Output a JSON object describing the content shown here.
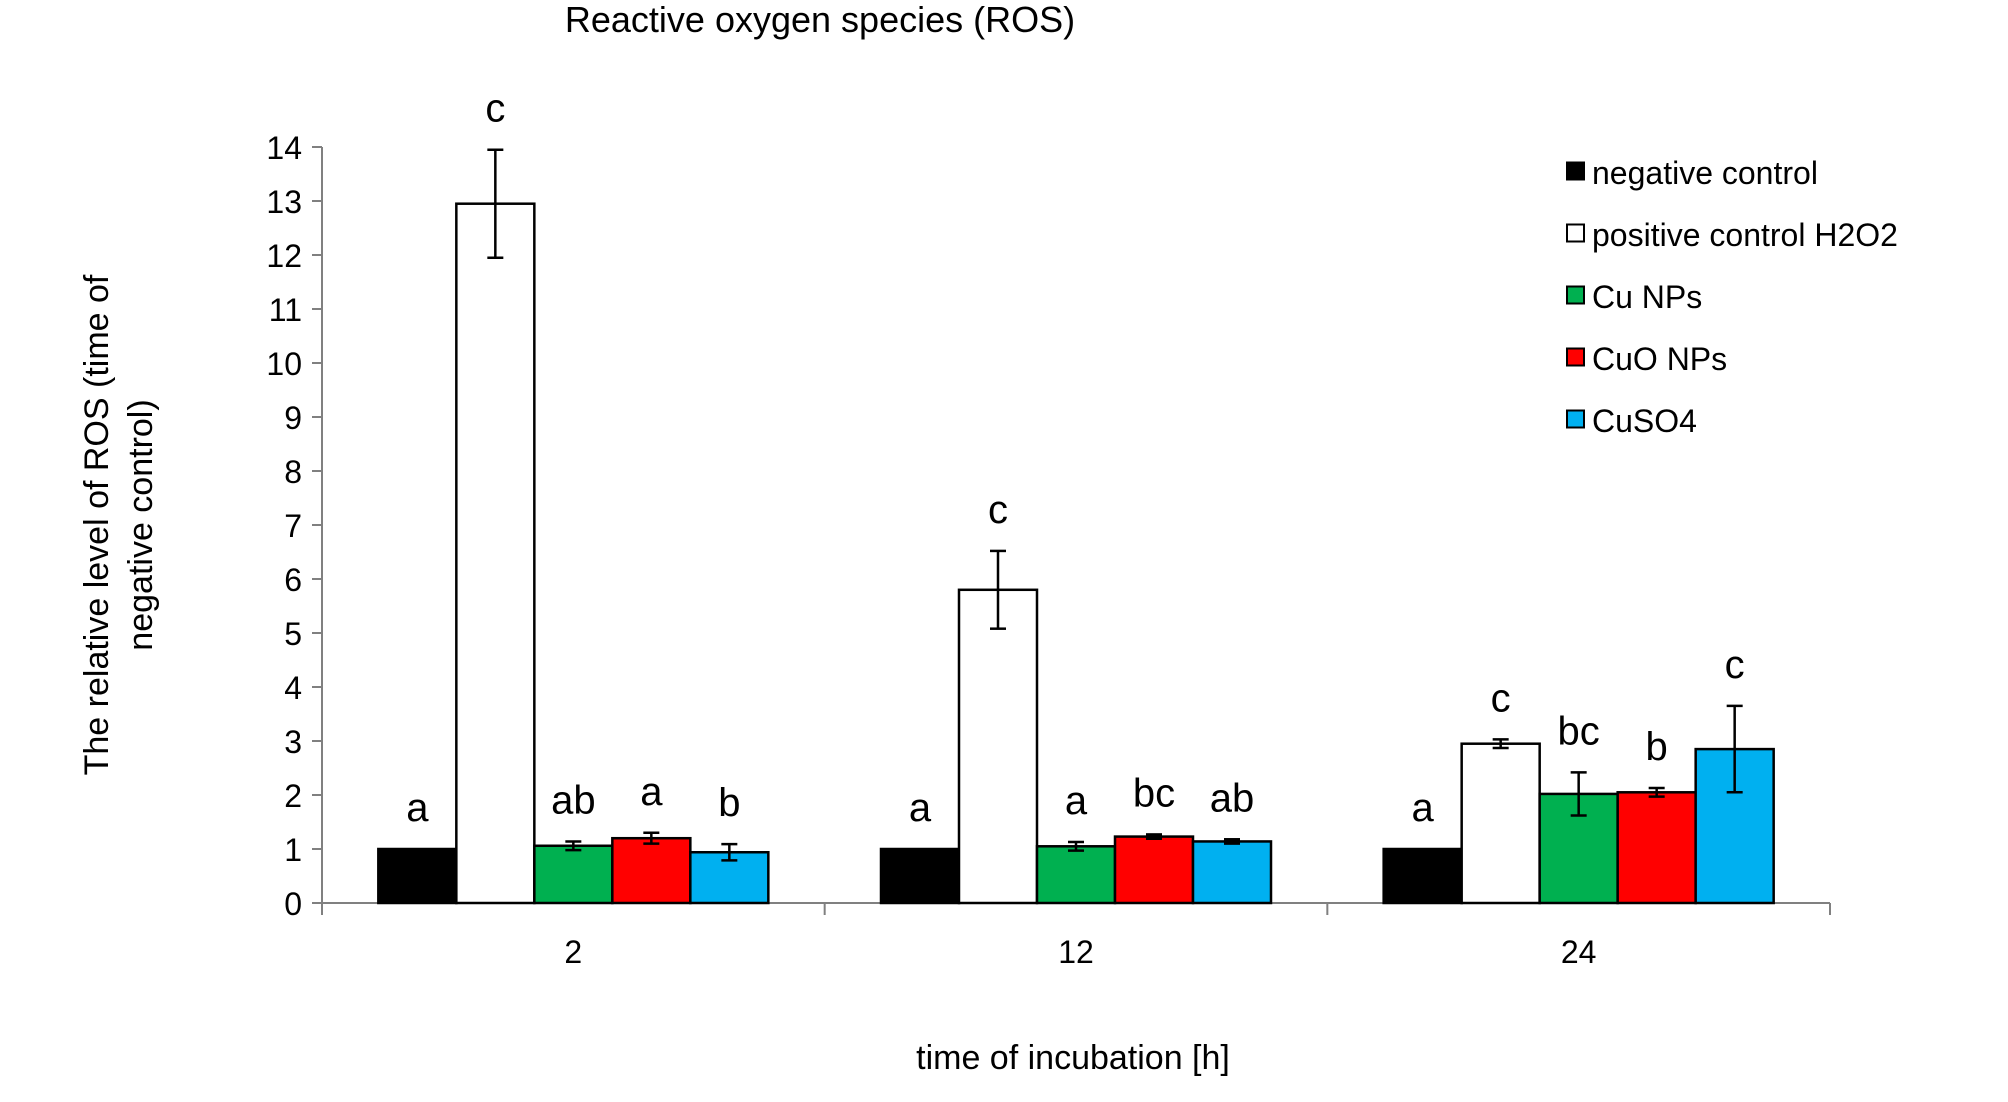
{
  "chart_data": {
    "type": "bar",
    "title": "Reactive oxygen species (ROS)",
    "xlabel": "time of incubation [h]",
    "ylabel_lines": [
      "The relative level  of ROS (time of",
      "negative control)"
    ],
    "categories": [
      "2",
      "12",
      "24"
    ],
    "ylim": [
      0,
      14
    ],
    "yticks": [
      "0",
      "1",
      "2",
      "3",
      "4",
      "5",
      "6",
      "7",
      "8",
      "9",
      "10",
      "11",
      "12",
      "13",
      "14"
    ],
    "grid": false,
    "legend_position": "top-right",
    "series": [
      {
        "name": "negative control",
        "color": "#000000",
        "values": [
          1.0,
          1.0,
          1.0
        ],
        "errors": [
          0,
          0,
          0
        ],
        "labels": [
          "a",
          "a",
          "a"
        ]
      },
      {
        "name": "positive control H2O2",
        "color": "#ffffff",
        "values": [
          12.95,
          5.8,
          2.95
        ],
        "errors": [
          1.0,
          0.72,
          0.08
        ],
        "labels": [
          "c",
          "c",
          "c"
        ]
      },
      {
        "name": "Cu NPs",
        "color": "#00b050",
        "values": [
          1.06,
          1.05,
          2.02
        ],
        "errors": [
          0.08,
          0.08,
          0.4
        ],
        "labels": [
          "ab",
          "a",
          "bc"
        ]
      },
      {
        "name": "CuO NPs",
        "color": "#ff0000",
        "values": [
          1.2,
          1.23,
          2.05
        ],
        "errors": [
          0.1,
          0.04,
          0.08
        ],
        "labels": [
          "a",
          "bc",
          "b"
        ]
      },
      {
        "name": "CuSO4",
        "color": "#00b0f0",
        "values": [
          0.94,
          1.14,
          2.85
        ],
        "errors": [
          0.15,
          0.04,
          0.8
        ],
        "labels": [
          "b",
          "ab",
          "c"
        ]
      }
    ]
  }
}
